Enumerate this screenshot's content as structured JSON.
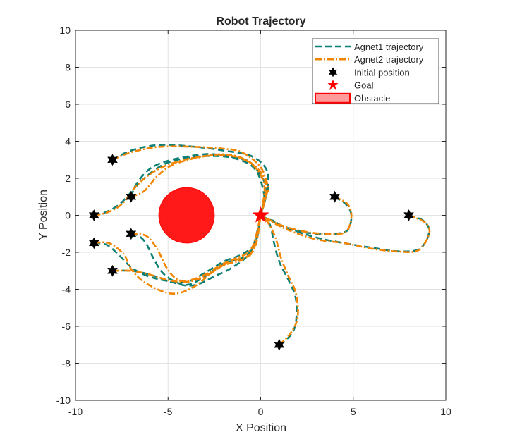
{
  "chart_data": {
    "type": "line",
    "title": "Robot Trajectory",
    "xlabel": "X Position",
    "ylabel": "Y Position",
    "xlim": [
      -10,
      10
    ],
    "ylim": [
      -10,
      10
    ],
    "xticks": [
      -10,
      -5,
      0,
      5,
      10
    ],
    "yticks": [
      -10,
      -8,
      -6,
      -4,
      -2,
      0,
      2,
      4,
      6,
      8,
      10
    ],
    "xtick_labels": [
      "-10",
      "-5",
      "0",
      "5",
      "10"
    ],
    "ytick_labels": [
      "-10",
      "-8",
      "-6",
      "-4",
      "-2",
      "0",
      "2",
      "4",
      "6",
      "8",
      "10"
    ],
    "grid": true,
    "legend_position": "top-right",
    "legend": [
      {
        "label": "Agnet1 trajectory",
        "kind": "dashed-line",
        "color": "#0e7f74"
      },
      {
        "label": "Agnet2 trajectory",
        "kind": "dashdot-line",
        "color": "#f28500"
      },
      {
        "label": "Initial position",
        "kind": "hexagram-marker",
        "color": "#000000"
      },
      {
        "label": "Goal",
        "kind": "star-marker",
        "color": "#ff0000"
      },
      {
        "label": "Obstacle",
        "kind": "filled-rectangle",
        "color": "#ff0000"
      }
    ],
    "obstacle": {
      "center": [
        -4,
        0
      ],
      "radius": 1.5,
      "color": "#ff0000"
    },
    "goal": {
      "x": 0,
      "y": 0,
      "color": "#ff0000"
    },
    "initial_positions": [
      {
        "x": -8,
        "y": 3
      },
      {
        "x": -7,
        "y": 1
      },
      {
        "x": -9,
        "y": 0
      },
      {
        "x": -7,
        "y": -1
      },
      {
        "x": -9,
        "y": -1.5
      },
      {
        "x": -8,
        "y": -3
      },
      {
        "x": 4,
        "y": 1
      },
      {
        "x": 8,
        "y": 0
      },
      {
        "x": 1,
        "y": -7
      }
    ],
    "series": [
      {
        "name": "Agnet1 trajectory",
        "color": "#0e7f74",
        "paths": [
          [
            [
              -8,
              3
            ],
            [
              -7,
              3.5
            ],
            [
              -5.5,
              3.8
            ],
            [
              -3.5,
              3.7
            ],
            [
              -2,
              3.5
            ],
            [
              -0.5,
              3.2
            ],
            [
              0.3,
              2.5
            ],
            [
              0.4,
              1.5
            ],
            [
              0.2,
              0.8
            ],
            [
              0,
              0
            ]
          ],
          [
            [
              -7,
              1
            ],
            [
              -6.7,
              1.7
            ],
            [
              -6,
              2.5
            ],
            [
              -5,
              2.95
            ],
            [
              -3.5,
              3.25
            ],
            [
              -2.5,
              3.3
            ],
            [
              -1.3,
              3.1
            ],
            [
              -0.5,
              2.8
            ],
            [
              0.3,
              1.5
            ],
            [
              0,
              0
            ]
          ],
          [
            [
              -9,
              0
            ],
            [
              -8.3,
              0.2
            ],
            [
              -7.5,
              0.7
            ],
            [
              -6.5,
              1.8
            ],
            [
              -5.5,
              2.6
            ],
            [
              -4.5,
              3.0
            ],
            [
              -3,
              3.2
            ],
            [
              -1.5,
              3.1
            ],
            [
              -0.3,
              2.5
            ],
            [
              0.2,
              1.0
            ],
            [
              0,
              0
            ]
          ],
          [
            [
              -7,
              -1
            ],
            [
              -6.6,
              -1.1
            ],
            [
              -6.2,
              -1.5
            ],
            [
              -5.8,
              -2.3
            ],
            [
              -5.3,
              -3.1
            ],
            [
              -4.6,
              -3.6
            ],
            [
              -3.9,
              -3.75
            ],
            [
              -3,
              -3.3
            ],
            [
              -2,
              -2.6
            ],
            [
              -1,
              -2.3
            ],
            [
              -0.3,
              -1.6
            ],
            [
              0,
              0
            ]
          ],
          [
            [
              -9,
              -1.5
            ],
            [
              -8.3,
              -1.6
            ],
            [
              -7.6,
              -2.2
            ],
            [
              -7,
              -2.8
            ],
            [
              -6.3,
              -3.2
            ],
            [
              -5.3,
              -3.5
            ],
            [
              -4,
              -3.6
            ],
            [
              -3,
              -3.1
            ],
            [
              -2,
              -2.5
            ],
            [
              -1,
              -2.1
            ],
            [
              -0.3,
              -1.5
            ],
            [
              0,
              0
            ]
          ],
          [
            [
              -8,
              -3
            ],
            [
              -7,
              -3.0
            ],
            [
              -6,
              -3.2
            ],
            [
              -5,
              -3.55
            ],
            [
              -4,
              -3.8
            ],
            [
              -3.3,
              -3.7
            ],
            [
              -2.5,
              -3.3
            ],
            [
              -1.5,
              -2.8
            ],
            [
              -0.5,
              -1.9
            ],
            [
              0,
              0
            ]
          ],
          [
            [
              4,
              1
            ],
            [
              4.6,
              0.6
            ],
            [
              4.9,
              0.0
            ],
            [
              4.7,
              -0.8
            ],
            [
              4,
              -1.0
            ],
            [
              3,
              -1.0
            ],
            [
              2,
              -0.85
            ],
            [
              1.2,
              -0.6
            ],
            [
              0.7,
              -0.3
            ],
            [
              0.3,
              -0.2
            ],
            [
              0,
              0
            ]
          ],
          [
            [
              8,
              0
            ],
            [
              8.8,
              -0.3
            ],
            [
              9.1,
              -0.9
            ],
            [
              8.6,
              -1.8
            ],
            [
              7.5,
              -1.95
            ],
            [
              6,
              -1.75
            ],
            [
              4.5,
              -1.5
            ],
            [
              3,
              -1.2
            ],
            [
              1.5,
              -0.7
            ],
            [
              0.6,
              -0.3
            ],
            [
              0,
              0
            ]
          ],
          [
            [
              1,
              -7
            ],
            [
              1.6,
              -6.5
            ],
            [
              1.9,
              -5.8
            ],
            [
              1.9,
              -4.5
            ],
            [
              1.5,
              -3.5
            ],
            [
              1,
              -2.5
            ],
            [
              0.7,
              -1.4
            ],
            [
              0.5,
              -0.5
            ],
            [
              0,
              0
            ]
          ]
        ]
      },
      {
        "name": "Agnet2 trajectory",
        "color": "#f28500",
        "paths": [
          [
            [
              -8,
              3
            ],
            [
              -7,
              3.4
            ],
            [
              -5.5,
              3.7
            ],
            [
              -3.5,
              3.7
            ],
            [
              -2,
              3.6
            ],
            [
              -1,
              3.4
            ],
            [
              0,
              2.6
            ],
            [
              0.4,
              1.5
            ],
            [
              0.3,
              1.1
            ],
            [
              0,
              0
            ]
          ],
          [
            [
              -7,
              1
            ],
            [
              -6.3,
              1.3
            ],
            [
              -5.6,
              2.1
            ],
            [
              -4.8,
              2.7
            ],
            [
              -3.5,
              3.1
            ],
            [
              -2,
              3.3
            ],
            [
              -0.8,
              3.0
            ],
            [
              0.1,
              2.2
            ],
            [
              0.3,
              1.2
            ],
            [
              0,
              0
            ]
          ],
          [
            [
              -9,
              0
            ],
            [
              -8.3,
              0.15
            ],
            [
              -7.5,
              0.6
            ],
            [
              -6.7,
              1.6
            ],
            [
              -5.7,
              2.4
            ],
            [
              -4.5,
              2.9
            ],
            [
              -3,
              3.2
            ],
            [
              -1.5,
              3.2
            ],
            [
              -0.4,
              2.7
            ],
            [
              0.2,
              1.6
            ],
            [
              0,
              0
            ]
          ],
          [
            [
              -7,
              -1
            ],
            [
              -6.2,
              -1.1
            ],
            [
              -5.6,
              -1.8
            ],
            [
              -5.1,
              -2.8
            ],
            [
              -4.6,
              -3.4
            ],
            [
              -4,
              -3.55
            ],
            [
              -3,
              -3.2
            ],
            [
              -2,
              -2.6
            ],
            [
              -1,
              -2.3
            ],
            [
              -0.4,
              -1.9
            ],
            [
              0,
              0
            ]
          ],
          [
            [
              -9,
              -1.5
            ],
            [
              -8.2,
              -1.5
            ],
            [
              -7.4,
              -2.1
            ],
            [
              -7,
              -2.9
            ],
            [
              -6.3,
              -3.6
            ],
            [
              -5.2,
              -4.15
            ],
            [
              -4.4,
              -4.2
            ],
            [
              -3.5,
              -3.8
            ],
            [
              -2.5,
              -3.0
            ],
            [
              -1.5,
              -2.4
            ],
            [
              -0.5,
              -1.8
            ],
            [
              0,
              0
            ]
          ],
          [
            [
              -8,
              -3
            ],
            [
              -7,
              -3.0
            ],
            [
              -6,
              -3.2
            ],
            [
              -5,
              -3.5
            ],
            [
              -4,
              -3.6
            ],
            [
              -3,
              -3.3
            ],
            [
              -2,
              -2.7
            ],
            [
              -1,
              -2.4
            ],
            [
              -0.3,
              -1.7
            ],
            [
              0,
              0
            ]
          ],
          [
            [
              4,
              1
            ],
            [
              4.7,
              0.6
            ],
            [
              4.9,
              -0.1
            ],
            [
              4.6,
              -0.9
            ],
            [
              3.8,
              -1.0
            ],
            [
              2.8,
              -0.95
            ],
            [
              1.8,
              -0.75
            ],
            [
              1,
              -0.5
            ],
            [
              0.4,
              -0.2
            ],
            [
              0,
              0
            ]
          ],
          [
            [
              8,
              0
            ],
            [
              8.9,
              -0.4
            ],
            [
              9.1,
              -1.0
            ],
            [
              8.5,
              -1.9
            ],
            [
              7.3,
              -1.95
            ],
            [
              6,
              -1.8
            ],
            [
              4.5,
              -1.5
            ],
            [
              3,
              -1.3
            ],
            [
              1.5,
              -0.8
            ],
            [
              0.5,
              -0.3
            ],
            [
              0,
              0
            ]
          ],
          [
            [
              1,
              -7
            ],
            [
              1.6,
              -6.4
            ],
            [
              2,
              -5.5
            ],
            [
              1.9,
              -4.2
            ],
            [
              1.5,
              -3.3
            ],
            [
              1.1,
              -2.3
            ],
            [
              0.8,
              -1.2
            ],
            [
              0.4,
              -0.4
            ],
            [
              0,
              0
            ]
          ]
        ]
      }
    ]
  }
}
